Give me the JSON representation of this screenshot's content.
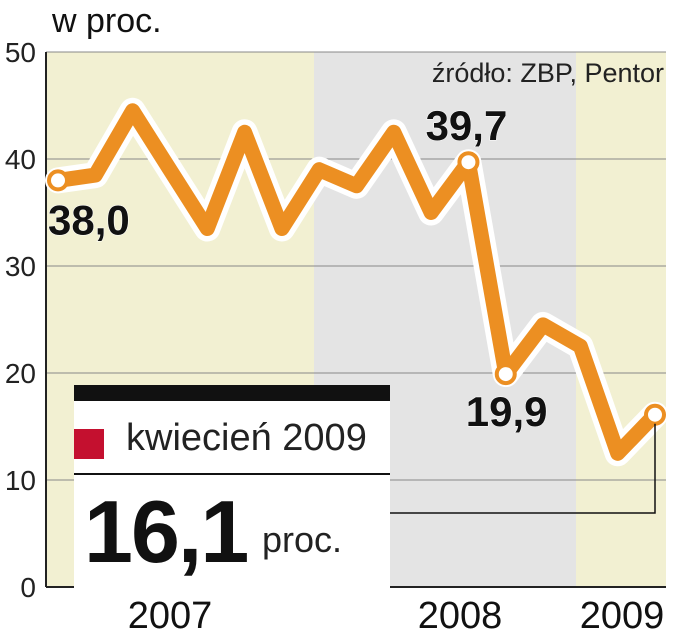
{
  "chart_data": {
    "type": "line",
    "unit_label": "w proc.",
    "source": "źródło: ZBP, Pentor",
    "ylim": [
      0,
      50
    ],
    "y_ticks": [
      "0",
      "10",
      "20",
      "30",
      "40",
      "50"
    ],
    "year_labels": [
      "2007",
      "2008",
      "2009"
    ],
    "series": [
      {
        "values": [
          38.0,
          38.5,
          44.5,
          39.0,
          33.5,
          42.5,
          33.5,
          39.0,
          37.5,
          42.5,
          35.0,
          39.7,
          19.9,
          24.5,
          22.5,
          12.5,
          16.1
        ]
      }
    ],
    "annotations": [
      {
        "index": 0,
        "label": "38,0"
      },
      {
        "index": 11,
        "label": "39,7"
      },
      {
        "index": 12,
        "label": "19,9"
      }
    ],
    "highlight": {
      "label": "kwiecień 2009",
      "value": "16,1",
      "unit": "proc.",
      "swatch_color": "#c4102f"
    },
    "colors": {
      "line": "#ec8f22",
      "line_halo": "#ffffff",
      "band_2007": "#f2f0d2",
      "band_2008": "#e4e4e4",
      "band_2009": "#f2f0d2",
      "grid": "#888888"
    },
    "grid": true
  }
}
